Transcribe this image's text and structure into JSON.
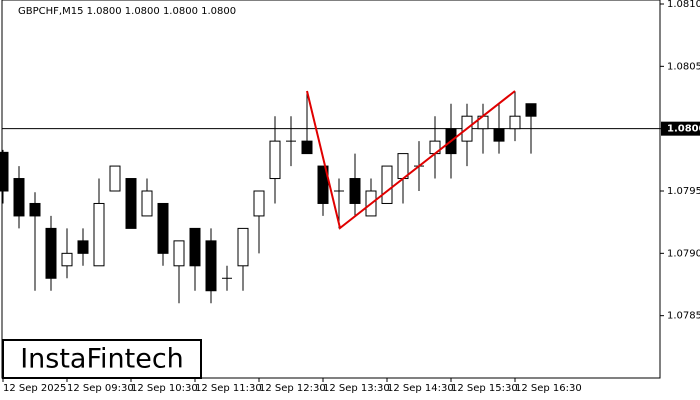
{
  "chart_data": {
    "type": "candlestick",
    "title": "GBPCHF,M15  1.0800 1.0800 1.0800 1.0800",
    "watermark": "InstaFintech",
    "categories": [
      "12 Sep 2025",
      null,
      null,
      null,
      "12 Sep 09:30",
      null,
      null,
      null,
      "12 Sep 10:30",
      null,
      null,
      null,
      "12 Sep 11:30",
      null,
      null,
      null,
      "12 Sep 12:30",
      null,
      null,
      null,
      "12 Sep 13:30",
      null,
      null,
      null,
      "12 Sep 14:30",
      null,
      null,
      null,
      "12 Sep 15:30",
      null,
      null,
      null,
      "12 Sep 16:30",
      null
    ],
    "open": [
      1.07981,
      1.0796,
      1.0794,
      1.0792,
      1.0789,
      1.0791,
      1.0789,
      1.0795,
      1.0796,
      1.0793,
      1.0794,
      1.0789,
      1.0792,
      1.0791,
      1.0788,
      1.0789,
      1.0793,
      1.0796,
      1.0799,
      1.0799,
      1.0797,
      1.0795,
      1.0796,
      1.0793,
      1.0794,
      1.0796,
      1.0797,
      1.0798,
      1.08,
      1.0799,
      1.08,
      1.08,
      1.08,
      1.0802
    ],
    "high": [
      1.07983,
      1.0797,
      1.07949,
      1.0793,
      1.0792,
      1.0792,
      1.0796,
      1.0797,
      1.0796,
      1.0796,
      1.0794,
      1.0791,
      1.0792,
      1.0792,
      1.0789,
      1.0792,
      1.0795,
      1.0801,
      1.0801,
      1.0803,
      1.0797,
      1.0796,
      1.0798,
      1.0796,
      1.0797,
      1.0798,
      1.0799,
      1.0801,
      1.0802,
      1.0802,
      1.0802,
      1.0802,
      1.0803,
      1.0802
    ],
    "low": [
      1.0794,
      1.0792,
      1.0787,
      1.0787,
      1.0788,
      1.0789,
      1.0789,
      1.0795,
      1.0792,
      1.0793,
      1.0789,
      1.0786,
      1.0787,
      1.0786,
      1.0787,
      1.0787,
      1.079,
      1.0794,
      1.0797,
      1.0798,
      1.0793,
      1.0792,
      1.0793,
      1.0793,
      1.0794,
      1.0794,
      1.0795,
      1.0796,
      1.0796,
      1.0797,
      1.0798,
      1.0798,
      1.0799,
      1.0798
    ],
    "close": [
      1.0795,
      1.0793,
      1.0793,
      1.0788,
      1.079,
      1.079,
      1.0794,
      1.0797,
      1.0792,
      1.0795,
      1.079,
      1.0791,
      1.0789,
      1.0787,
      1.0788,
      1.0792,
      1.0795,
      1.0799,
      1.0799,
      1.0798,
      1.0794,
      1.0795,
      1.0794,
      1.0795,
      1.0797,
      1.0798,
      1.0797,
      1.0799,
      1.0798,
      1.0801,
      1.0801,
      1.0799,
      1.0801,
      1.0801
    ],
    "up_color": "#ffffff",
    "down_color": "#000000",
    "price_line": 1.08,
    "ylim": [
      1.078,
      1.081
    ],
    "yticks": [
      {
        "value": 1.081,
        "label": "1.0810"
      },
      1.0805,
      {
        "value": 1.08,
        "label": "1.0800"
      },
      1.0795,
      {
        "value": 1.079,
        "label": "1.0790"
      },
      1.0785
    ]
  }
}
